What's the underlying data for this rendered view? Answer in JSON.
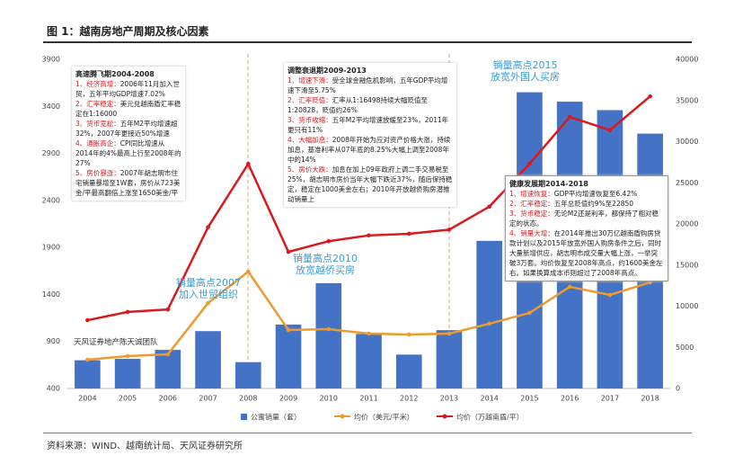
{
  "header": {
    "title": "图 1：越南房地产周期及核心因素"
  },
  "chart_data": {
    "type": "bar-line",
    "categories": [
      "2004",
      "2005",
      "2006",
      "2007",
      "2008",
      "2009",
      "2010",
      "2011",
      "2012",
      "2013",
      "2014",
      "2015",
      "2016",
      "2017",
      "2018"
    ],
    "series": [
      {
        "name": "公寓销量（套）",
        "type": "bar",
        "color": "#4472c4",
        "values": [
          700,
          715,
          810,
          1010,
          680,
          1080,
          1520,
          980,
          760,
          1020,
          1970,
          3550,
          3450,
          3360,
          3110
        ]
      },
      {
        "name": "均价（美元/平米）",
        "type": "line",
        "color": "#ed9a2f",
        "values": [
          706,
          744,
          763,
          1308,
          1643,
          1022,
          1031,
          983,
          974,
          983,
          1089,
          1203,
          1481,
          1395,
          1528
        ]
      },
      {
        "name": "均价（万越南盾/平）",
        "type": "line",
        "axis": "y2",
        "color": "#d9191c",
        "values": [
          8300,
          9300,
          9600,
          19600,
          27300,
          16600,
          17900,
          18600,
          18800,
          19300,
          22100,
          27300,
          33000,
          31400,
          35500
        ]
      }
    ],
    "ylim": [
      400,
      3900
    ],
    "yticks": [
      400,
      900,
      1400,
      1900,
      2400,
      2900,
      3400,
      3900
    ],
    "y2lim": [
      0,
      40000
    ],
    "y2ticks": [
      0,
      5000,
      10000,
      15000,
      20000,
      25000,
      30000,
      35000,
      40000
    ],
    "legend": "bottom",
    "phases": [
      {
        "title": "高速腾飞期2004-2008",
        "items": [
          {
            "label": "1、经济高增：",
            "text": "2006年11月加入世贸，五年平均GDP增速7.02%"
          },
          {
            "label": "2、汇率稳定：",
            "text": "美元兑越南盾汇率稳定在1:16000"
          },
          {
            "label": "3、货币宽松：",
            "text": "五年M2平均增速超32%，2007年更接近50%增速"
          },
          {
            "label": "4、通胀高企：",
            "text": "CPI同比增速从2014年的4%最高上行至2008年的27%"
          },
          {
            "label": "5、房价暴涨：",
            "text": "2007年胡志明市住宅销量暴增至1W套，房价从723美金/平最高翻倍上涨至1650美金/平"
          }
        ]
      },
      {
        "title": "调整衰退期2009-2013",
        "items": [
          {
            "label": "1、增速下滑：",
            "text": "受全球金融危机影响，五年GDP平均增速下滑至5.75%"
          },
          {
            "label": "2、汇率贬值：",
            "text": "汇率从1:16498持续大幅贬值至1:20828，贬值约26%"
          },
          {
            "label": "3、货币收缩：",
            "text": "五年M2平均增速放缓至23%，2011年更只有11%"
          },
          {
            "label": "4、大幅加息：",
            "text": "2008年开始为应对资产价格大涨，持续加息，基准利率从07年底的8.25%大幅上调至2008年中的14%"
          },
          {
            "label": "5、房价大跌：",
            "text": "加息在加上09年政府上调二手交易税至25%，胡志明市房价当年大幅下跌近37%，随后保持稳定，稳定在1000美金左右；2010年开放越侨购房潜推动销量上"
          }
        ]
      },
      {
        "title": "健康发展期2014-2018",
        "items": [
          {
            "label": "1、增速恢复：",
            "text": "GDP平均增速恢复至6.42%"
          },
          {
            "label": "2、汇率稳定：",
            "text": "五年总贬值约9%至22850"
          },
          {
            "label": "3、货币稳定：",
            "text": "无论M2还是利率，都保持了相对稳定的状态。"
          },
          {
            "label": "4、销量大增：",
            "text": "在2014年推出30万亿越南盾购房贷款计划以及2015年放宽外国人购房条件之后，同时大量新增供应，胡志明市成交量大幅上涨，一举突破3万套。均价恢复至2008年高点，约1600美金左右。如果换算成本币则超过了2008年高点。"
          }
        ]
      }
    ],
    "callouts": [
      {
        "line1": "销量高点2007",
        "line2": "加入世贸组织"
      },
      {
        "line1": "销量高点2010",
        "line2": "放宽越侨买房"
      },
      {
        "line1": "销量高点2015",
        "line2": "放宽外国人买房"
      }
    ],
    "watermark": "天风证券地产陈天诚团队"
  },
  "footer": {
    "source": "资料来源：WIND、越南统计局、天风证券研究所"
  }
}
